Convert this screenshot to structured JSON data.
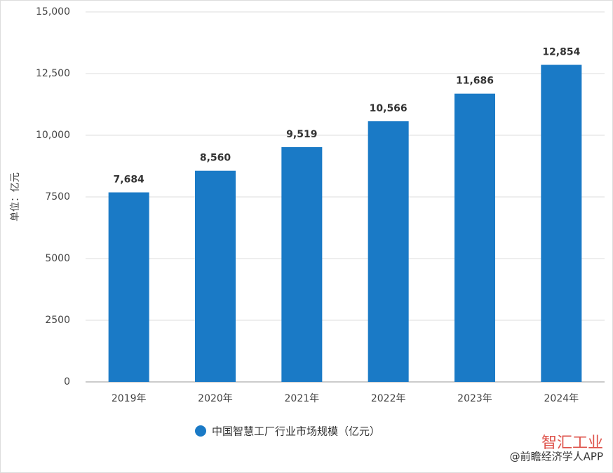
{
  "chart_data": {
    "type": "bar",
    "y_label": "单位：亿元",
    "categories": [
      "2019年",
      "2020年",
      "2021年",
      "2022年",
      "2023年",
      "2024年"
    ],
    "series": [
      {
        "name": "中国智慧工厂行业市场规模（亿元）",
        "color": "#1a7ac6",
        "values": [
          7684,
          8560,
          9519,
          10566,
          11686,
          12854
        ],
        "value_labels": [
          "7,684",
          "8,560",
          "9,519",
          "10,566",
          "11,686",
          "12,854"
        ]
      }
    ],
    "ylim": [
      0,
      15000
    ],
    "yticks": [
      0,
      2500,
      5000,
      7500,
      {
        "value": 10000,
        "label": "10,000"
      },
      {
        "value": 12500,
        "label": "12,500"
      },
      {
        "value": 15000,
        "label": "15,000"
      }
    ],
    "grid": true,
    "source": "@前瞻经济学人APP",
    "watermark": "智汇工业"
  }
}
